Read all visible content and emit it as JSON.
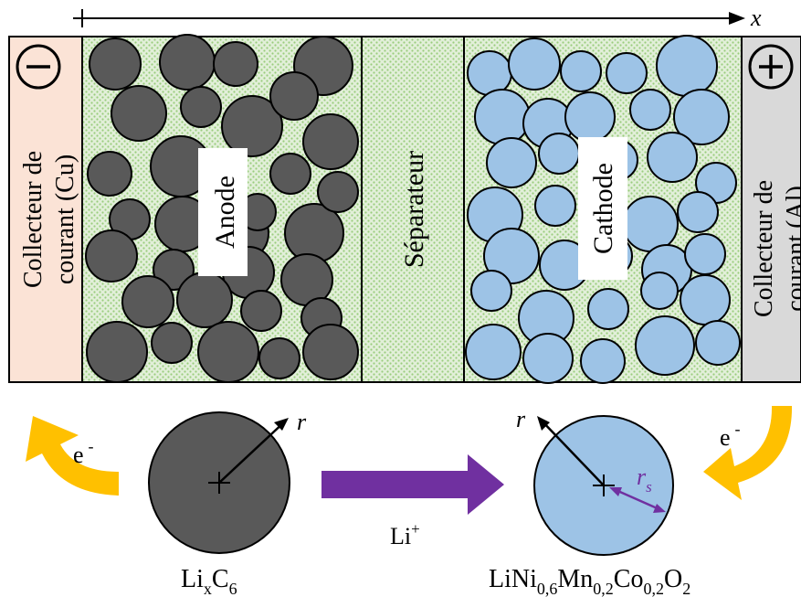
{
  "axis": {
    "label": "x"
  },
  "collectors": {
    "negative": {
      "line1": "Collecteur de",
      "line2": "courant (Cu)",
      "sign": "−",
      "color": "#fbe3d6"
    },
    "positive": {
      "line1": "Collecteur de",
      "line2": "courant (Al)",
      "sign": "+",
      "color": "#d9d9d9"
    }
  },
  "regions": {
    "anode": "Anode",
    "separator": "Séparateur",
    "cathode": "Cathode",
    "background_color": "#e2efd9",
    "dot_color": "#9acd7e"
  },
  "particles": {
    "anode_color": "#595959",
    "cathode_color": "#9dc3e6"
  },
  "lower": {
    "electron_left": {
      "text": "e",
      "sup": "-"
    },
    "electron_right": {
      "text": "e",
      "sup": "-"
    },
    "ion": {
      "text": "Li",
      "sup": "+"
    },
    "arrow_color": "#7030a0",
    "electron_arrow_color": "#ffc000",
    "radius_label": "r",
    "rs_label_main": "r",
    "rs_label_sub": "s",
    "anode_formula": {
      "a": "Li",
      "a_sub": "x",
      "b": "C",
      "b_sub": "6"
    },
    "cathode_formula": {
      "p1": "LiNi",
      "s1": "0,6",
      "p2": "Mn",
      "s2": "0,2",
      "p3": "Co",
      "s3": "0,2",
      "p4": "O",
      "s4": "2"
    }
  }
}
